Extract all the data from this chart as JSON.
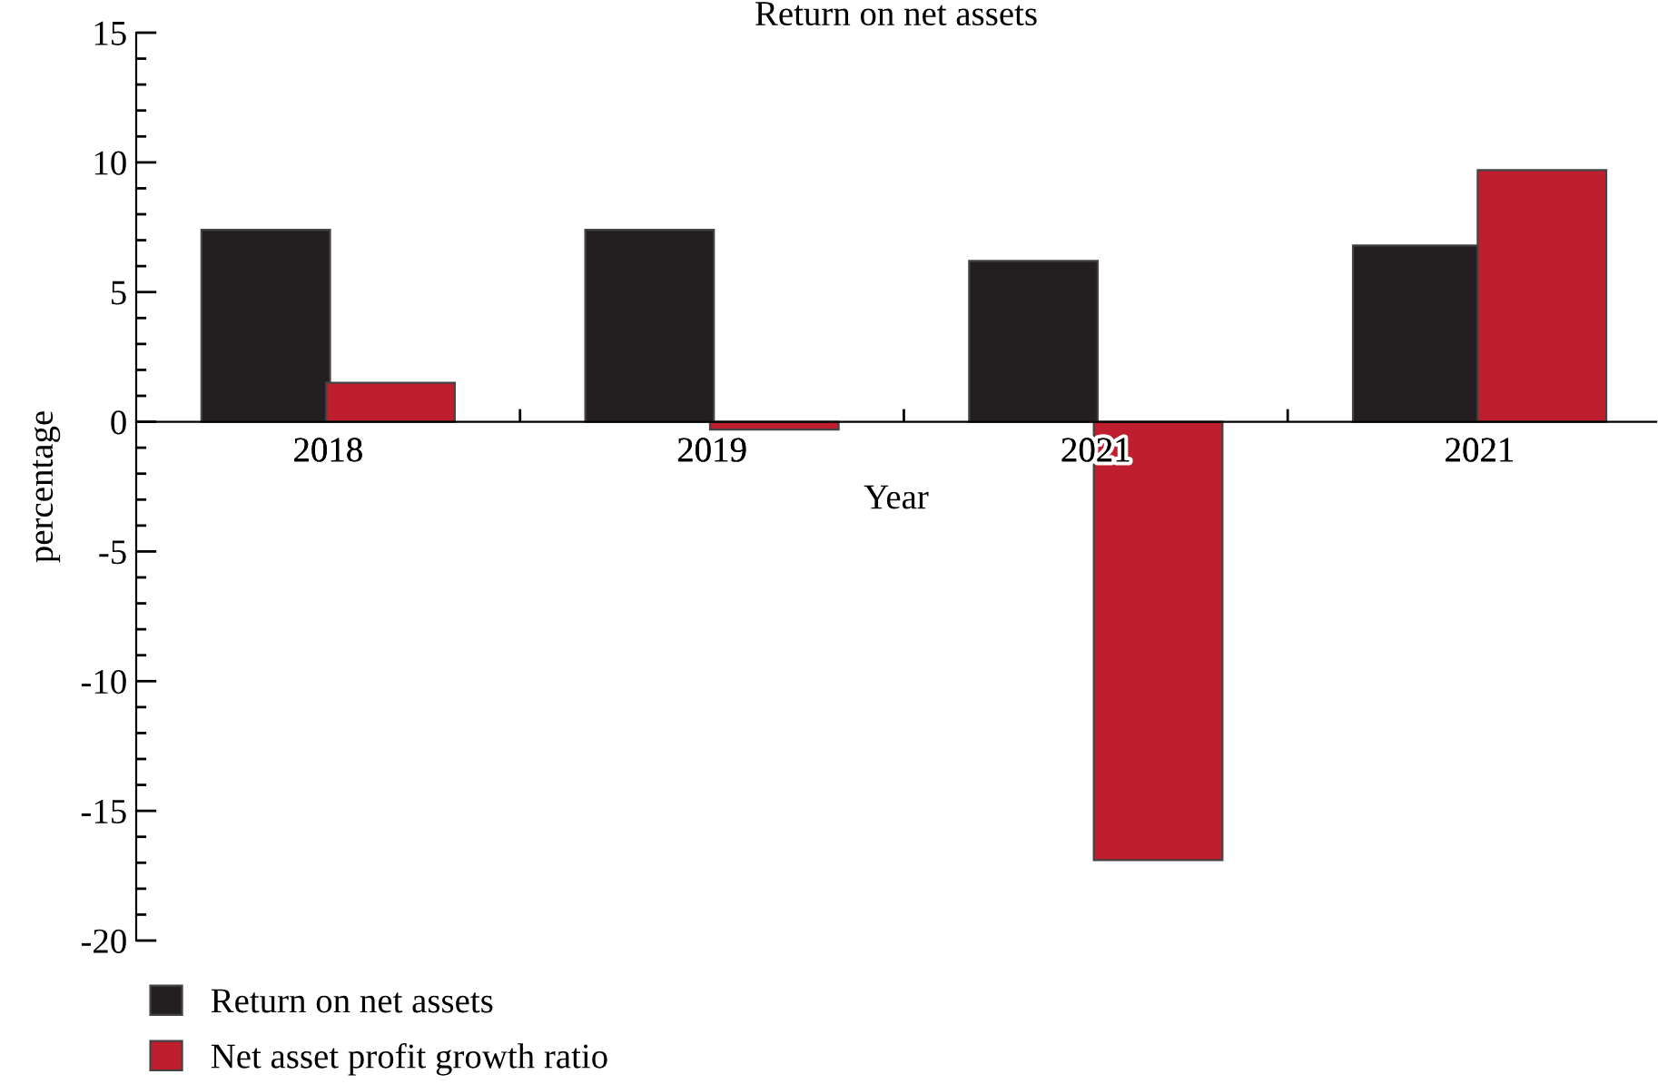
{
  "chart_data": {
    "type": "bar",
    "title": "Return on net assets",
    "xlabel": "Year",
    "ylabel": "percentage",
    "categories": [
      "2018",
      "2019",
      "2021",
      "2021"
    ],
    "series": [
      {
        "name": "Return on net assets",
        "color": "#231f20",
        "values": [
          7.4,
          7.4,
          6.2,
          6.8
        ]
      },
      {
        "name": "Net asset profit growth ratio",
        "color": "#be1e2d",
        "values": [
          1.5,
          -0.3,
          -16.9,
          9.7
        ]
      }
    ],
    "ylim": [
      -20,
      15
    ],
    "yticks": [
      -20,
      -15,
      -10,
      -5,
      0,
      5,
      10,
      15
    ],
    "grid": false,
    "legend": "bottom left"
  }
}
